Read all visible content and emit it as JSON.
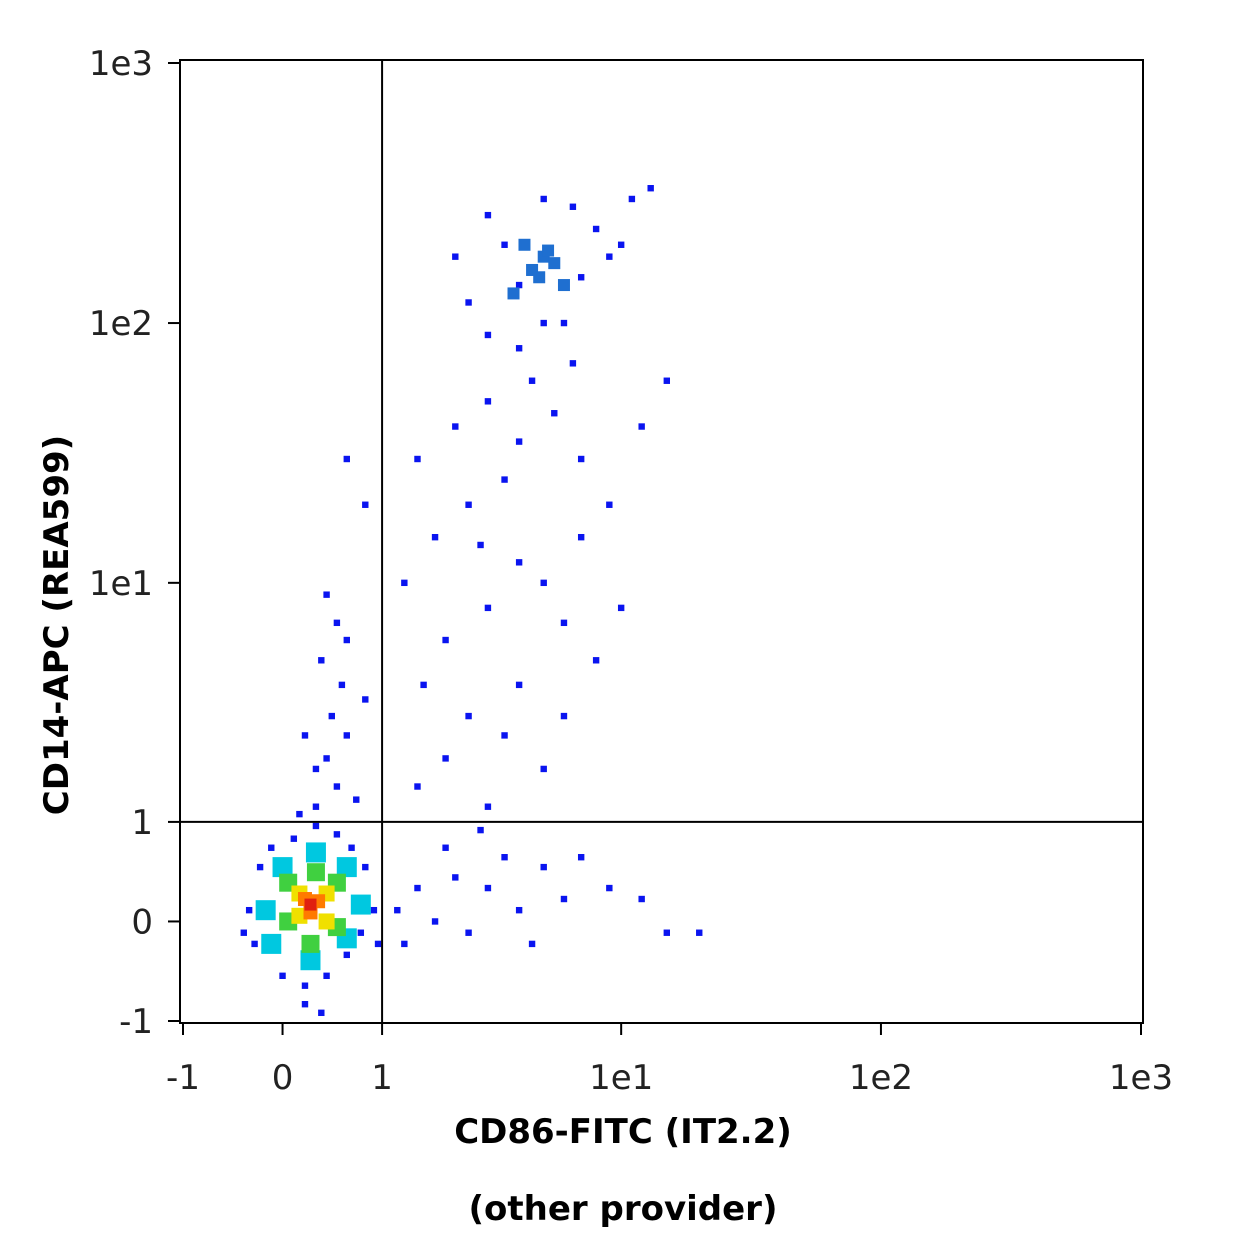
{
  "chart_data": {
    "type": "scatter",
    "x_label": "CD86-FITC (IT2.2)",
    "x_sublabel": "(other provider)",
    "y_label": "CD14-APC (REA599)",
    "scale": "asinh",
    "xlim": [
      -1,
      1000
    ],
    "ylim": [
      -1,
      1000
    ],
    "xticks": [
      -1,
      0,
      1,
      {
        "value": 10,
        "label": "1e1"
      },
      {
        "value": 100,
        "label": "1e2"
      },
      {
        "value": 1000,
        "label": "1e3"
      }
    ],
    "yticks": [
      -1,
      0,
      1,
      {
        "value": 10,
        "label": "1e1"
      },
      {
        "value": 100,
        "label": "1e2"
      },
      {
        "value": 1000,
        "label": "1e3"
      }
    ],
    "gates": {
      "x": 1,
      "y": 1
    },
    "series": [
      {
        "color": "#0a14f0",
        "x": [
          -0.3,
          -0.25,
          -0.2,
          0,
          0.1,
          0.2,
          0.4,
          0.6,
          0.7,
          0.8,
          0.75,
          0.5,
          -0.1,
          0.3,
          -0.35,
          0.65,
          0.2,
          0.35,
          0.9,
          0.95,
          1.2,
          1.5,
          1.8,
          2.2,
          2.5,
          3,
          3.5,
          4,
          5,
          6,
          1.3,
          2,
          2.8,
          4.5,
          7,
          9,
          12,
          15,
          20,
          0.3,
          0.5,
          0.4,
          0.6,
          0.45,
          0.55,
          0.35,
          0.6,
          0.5,
          0.3,
          0.7,
          0.4,
          0.15,
          0.8,
          0.2,
          1.5,
          2,
          2.5,
          3,
          3.5,
          4,
          5,
          6,
          2,
          3,
          4,
          1.8,
          2.5,
          3.5,
          5,
          6,
          7,
          8,
          1.5,
          2.2,
          3,
          4,
          5.5,
          7,
          9,
          10,
          12,
          1.3,
          1.6,
          2.8,
          4.5,
          6.5,
          15,
          0.8,
          0.6,
          2.5,
          3,
          3.5,
          4,
          6,
          7,
          8,
          9,
          2.2,
          3,
          5,
          6.5,
          10,
          4,
          5,
          11,
          13
        ],
        "values": [
          0.1,
          -0.2,
          0.5,
          -0.5,
          0.8,
          -0.6,
          -0.5,
          -0.3,
          0.2,
          0.5,
          -0.1,
          0.85,
          0.7,
          0.95,
          -0.1,
          0.7,
          -0.8,
          -0.9,
          0.1,
          -0.2,
          0.1,
          0.3,
          0,
          0.4,
          -0.1,
          0.3,
          0.6,
          0.1,
          0.5,
          0.2,
          -0.2,
          0.7,
          0.9,
          -0.2,
          0.6,
          0.3,
          0.2,
          -0.1,
          -0.1,
          1.2,
          1.5,
          2,
          2.5,
          3,
          4,
          5,
          6,
          7,
          1.8,
          1.3,
          9,
          1.1,
          3.5,
          2.5,
          1.5,
          2,
          3,
          1.2,
          2.5,
          4,
          1.8,
          3,
          6,
          8,
          12,
          15,
          20,
          25,
          10,
          7,
          15,
          5,
          30,
          40,
          50,
          35,
          45,
          30,
          20,
          8,
          40,
          10,
          4,
          14,
          60,
          70,
          60,
          20,
          30,
          120,
          90,
          200,
          80,
          100,
          150,
          230,
          180,
          180,
          260,
          300,
          280,
          200,
          140,
          100,
          300,
          330
        ]
      },
      {
        "color": "#1f6fd0",
        "x": [
          4.5,
          5,
          5.5,
          4.8,
          5.2,
          4.2,
          6,
          3.8
        ],
        "values": [
          160,
          180,
          170,
          150,
          190,
          200,
          140,
          130
        ]
      },
      {
        "color": "#00c8e0",
        "x": [
          0,
          0.6,
          -0.15,
          0.75,
          0.25,
          0.3,
          0.6,
          -0.1
        ],
        "values": [
          0.5,
          0.5,
          0.1,
          0.15,
          -0.35,
          0.65,
          -0.15,
          -0.2
        ]
      },
      {
        "color": "#40d040",
        "x": [
          0.05,
          0.5,
          0.05,
          0.5,
          0.25,
          0.3
        ],
        "values": [
          0.35,
          0.35,
          0,
          -0.05,
          -0.2,
          0.45
        ]
      },
      {
        "color": "#f0e000",
        "x": [
          0.15,
          0.4,
          0.15,
          0.4
        ],
        "values": [
          0.25,
          0.25,
          0.05,
          0
        ]
      },
      {
        "color": "#ff7a00",
        "x": [
          0.2,
          0.32,
          0.25
        ],
        "values": [
          0.2,
          0.18,
          0.08
        ]
      },
      {
        "color": "#e02010",
        "x": [
          0.25
        ],
        "values": [
          0.15
        ]
      }
    ]
  }
}
